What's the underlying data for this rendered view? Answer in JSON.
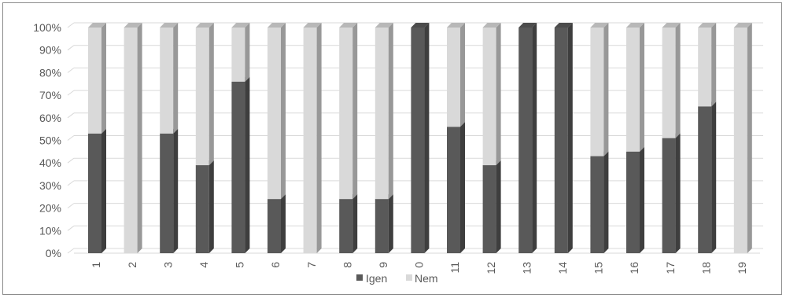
{
  "chart_data": {
    "type": "bar",
    "stacked": true,
    "percent": true,
    "three_d": true,
    "categories": [
      "1",
      "2",
      "3",
      "4",
      "5",
      "6",
      "7",
      "8",
      "9",
      "0",
      "11",
      "12",
      "13",
      "14",
      "15",
      "16",
      "17",
      "18",
      "19"
    ],
    "series": [
      {
        "name": "Igen",
        "color": "#595959",
        "values": [
          53,
          0,
          53,
          39,
          76,
          24,
          0,
          24,
          24,
          100,
          56,
          39,
          100,
          100,
          43,
          45,
          51,
          65,
          0
        ]
      },
      {
        "name": "Nem",
        "color": "#d9d9d9",
        "values": [
          47,
          100,
          47,
          61,
          24,
          76,
          100,
          76,
          76,
          0,
          44,
          61,
          0,
          0,
          57,
          55,
          49,
          35,
          100
        ]
      }
    ],
    "y_ticks": [
      "0%",
      "10%",
      "20%",
      "30%",
      "40%",
      "50%",
      "60%",
      "70%",
      "80%",
      "90%",
      "100%"
    ],
    "ylim": [
      0,
      100
    ],
    "grid": true,
    "legend_position": "bottom"
  }
}
